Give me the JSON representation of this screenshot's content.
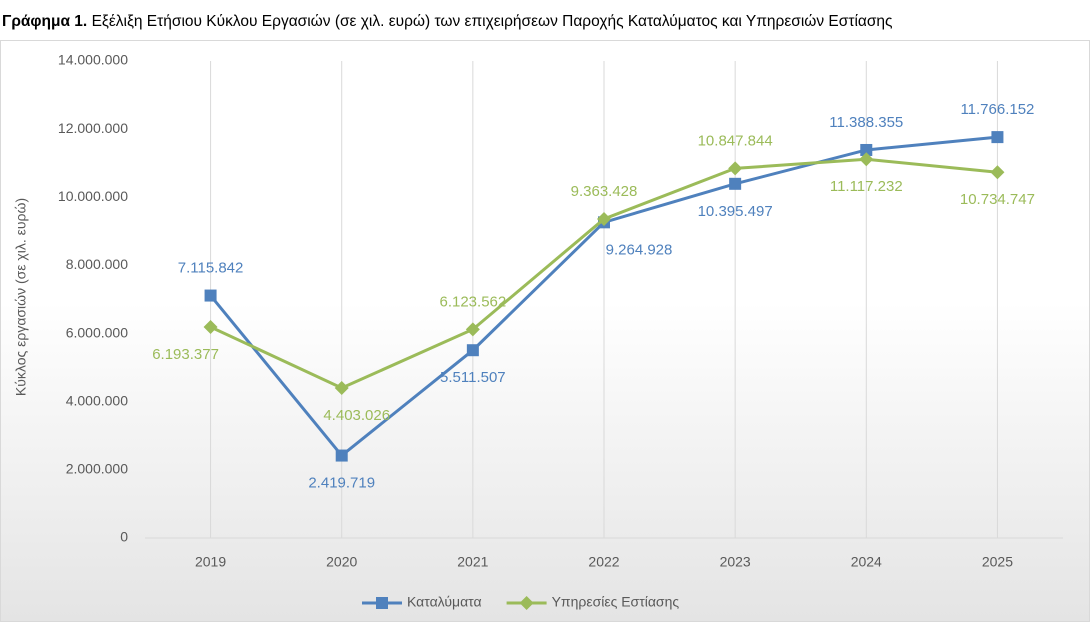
{
  "chart_data": {
    "type": "line",
    "title_label": "Γράφημα 1.",
    "title": "Εξέλιξη Ετήσιου Κύκλου Εργασιών (σε χιλ. ευρώ) των επιχειρήσεων Παροχής Καταλύματος και Υπηρεσιών Εστίασης",
    "y_label": "Κύκλος εργασιών (σε χιλ. ευρώ)",
    "categories": [
      "2019",
      "2020",
      "2021",
      "2022",
      "2023",
      "2024",
      "2025"
    ],
    "series": [
      {
        "name": "Καταλύματα",
        "color": "#4f81bd",
        "marker": "square",
        "values": [
          7115842,
          2419719,
          5511507,
          9264928,
          10395497,
          11388355,
          11766152
        ],
        "value_labels": [
          "7.115.842",
          "2.419.719",
          "5.511.507",
          "9.264.928",
          "10.395.497",
          "11.388.355",
          "11.766.152"
        ]
      },
      {
        "name": "Υπηρεσίες Εστίασης",
        "color": "#9bbb59",
        "marker": "diamond",
        "values": [
          6193377,
          4403026,
          6123562,
          9363428,
          10847844,
          11117232,
          10734747
        ],
        "value_labels": [
          "6.193.377",
          "4.403.026",
          "6.123.562",
          "9.363.428",
          "10.847.844",
          "11.117.232",
          "10.734.747"
        ]
      }
    ],
    "ylim": [
      0,
      14000000
    ],
    "yticks": [
      0,
      {
        "value": 2000000,
        "label": "2.000.000"
      },
      {
        "value": 4000000,
        "label": "4.000.000"
      },
      {
        "value": 6000000,
        "label": "6.000.000"
      },
      {
        "value": 8000000,
        "label": "8.000.000"
      },
      {
        "value": 10000000,
        "label": "10.000.000"
      },
      {
        "value": 12000000,
        "label": "12.000.000"
      },
      {
        "value": 14000000,
        "label": "14.000.000"
      }
    ],
    "grid": "x",
    "legend": "bottom"
  }
}
